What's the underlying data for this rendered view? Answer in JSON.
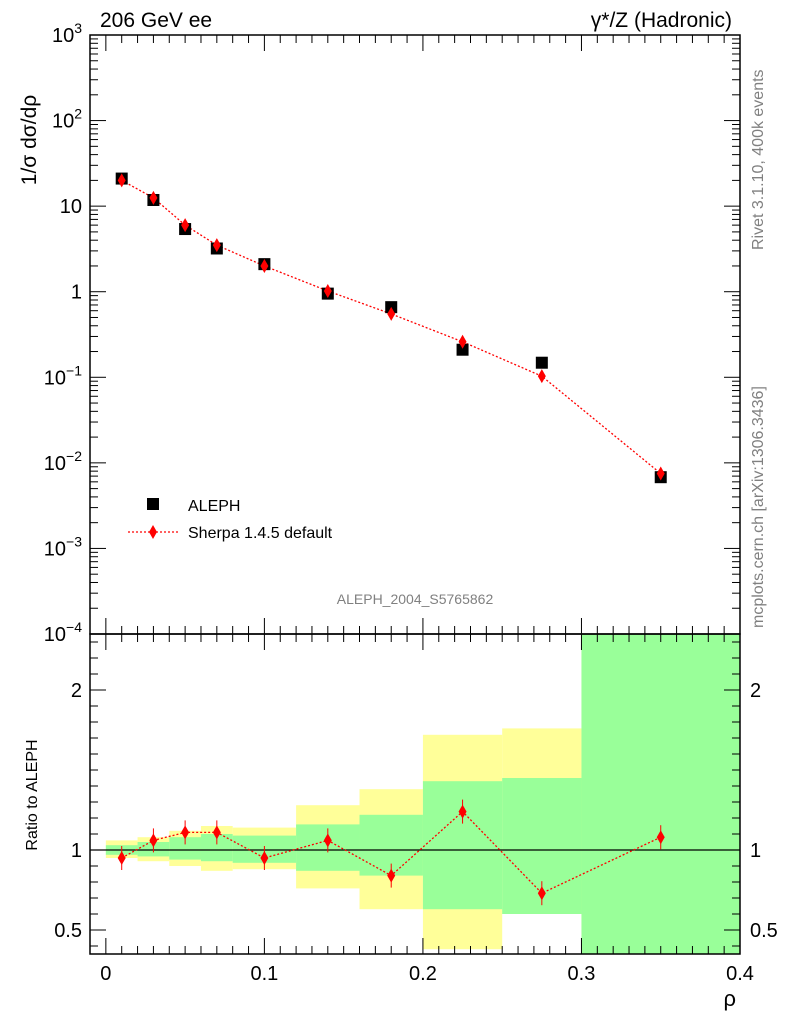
{
  "header": {
    "left": "206 GeV ee",
    "right": "γ*/Z (Hadronic)"
  },
  "side_text": {
    "rivet": "Rivet 3.1.10,  400k events",
    "mcplots": "mcplots.cern.ch [arXiv:1306.3436]"
  },
  "analysis_label": "ALEPH_2004_S5765862",
  "chart_data": [
    {
      "type": "scatter",
      "title": "206 GeV ee",
      "ylabel": "1/σ  dσ/dρ",
      "yscale": "log",
      "xlim": [
        -0.01,
        0.4
      ],
      "ylim": [
        0.0001,
        1000
      ],
      "y_tick_labels": [
        "10^-4",
        "10^-3",
        "10^-2",
        "10^-1",
        "1",
        "10",
        "10^2",
        "10^3"
      ],
      "legend_position": "lower-left",
      "series": [
        {
          "name": "ALEPH",
          "marker": "square",
          "color": "#000000",
          "x": [
            0.01,
            0.03,
            0.05,
            0.07,
            0.1,
            0.14,
            0.18,
            0.225,
            0.275,
            0.35
          ],
          "values": [
            21,
            11.8,
            5.4,
            3.2,
            2.1,
            0.95,
            0.66,
            0.21,
            0.148,
            0.0068
          ]
        },
        {
          "name": "Sherpa 1.4.5 default",
          "marker": "diamond",
          "line": "dotted",
          "color": "#ff0000",
          "x": [
            0.01,
            0.03,
            0.05,
            0.07,
            0.1,
            0.14,
            0.18,
            0.225,
            0.275,
            0.35
          ],
          "values": [
            20,
            12.5,
            6.0,
            3.5,
            2.0,
            1.02,
            0.55,
            0.26,
            0.103,
            0.0075
          ]
        }
      ]
    },
    {
      "type": "scatter",
      "ylabel": "Ratio to ALEPH",
      "xlabel": "ρ",
      "xlim": [
        -0.01,
        0.4
      ],
      "ylim": [
        0.35,
        2.35
      ],
      "x_ticks": [
        0,
        0.1,
        0.2,
        0.3,
        0.4
      ],
      "x_tick_labels": [
        "0",
        "0.1",
        "0.2",
        "0.3",
        "0.4"
      ],
      "y_ticks": [
        0.5,
        1,
        2
      ],
      "y_tick_labels": [
        "0.5",
        "1",
        "2"
      ],
      "reference_line": 1,
      "bands": {
        "bin_edges": [
          0,
          0.02,
          0.04,
          0.06,
          0.08,
          0.12,
          0.16,
          0.2,
          0.25,
          0.3,
          0.4
        ],
        "yellow": [
          [
            0.95,
            1.06
          ],
          [
            0.93,
            1.08
          ],
          [
            0.9,
            1.12
          ],
          [
            0.87,
            1.15
          ],
          [
            0.88,
            1.14
          ],
          [
            0.76,
            1.28
          ],
          [
            0.63,
            1.38
          ],
          [
            0.38,
            1.72
          ],
          [
            0.6,
            1.76
          ],
          [
            0.35,
            2.35
          ]
        ],
        "green": [
          [
            0.97,
            1.03
          ],
          [
            0.96,
            1.05
          ],
          [
            0.94,
            1.08
          ],
          [
            0.93,
            1.1
          ],
          [
            0.92,
            1.09
          ],
          [
            0.87,
            1.16
          ],
          [
            0.84,
            1.22
          ],
          [
            0.63,
            1.43
          ],
          [
            0.6,
            1.45
          ],
          [
            0.35,
            2.35
          ]
        ]
      },
      "series": [
        {
          "name": "Sherpa 1.4.5 default",
          "marker": "diamond",
          "line": "dotted",
          "color": "#ff0000",
          "x": [
            0.01,
            0.03,
            0.05,
            0.07,
            0.1,
            0.14,
            0.18,
            0.225,
            0.275,
            0.35
          ],
          "values": [
            0.95,
            1.06,
            1.11,
            1.11,
            0.95,
            1.06,
            0.84,
            1.24,
            0.73,
            1.08
          ]
        }
      ]
    }
  ],
  "colors": {
    "yellow_band": "#ffff99",
    "green_band": "#99ff99",
    "data": "#000000",
    "mc": "#ff0000"
  }
}
